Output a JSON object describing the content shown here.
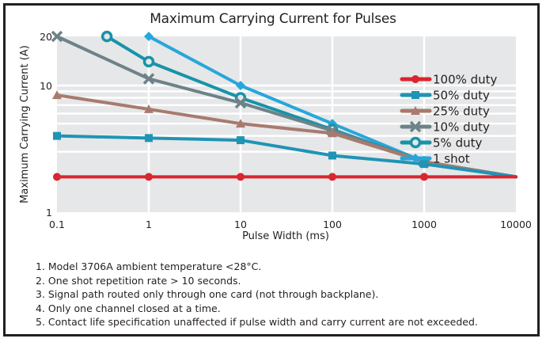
{
  "chart_data": {
    "type": "line",
    "title": "Maximum Carrying Current for Pulses",
    "xlabel": "Pulse Width (ms)",
    "ylabel": "Maximum Carrying Current (A)",
    "xscale": "log",
    "yscale": "log",
    "xlim": [
      0.1,
      10000
    ],
    "ylim": [
      1,
      20
    ],
    "xticks": [
      "0.1",
      "1",
      "10",
      "100",
      "1000",
      "10000"
    ],
    "xtick_values": [
      0.1,
      1,
      10,
      100,
      1000,
      10000
    ],
    "yticks": [
      "1",
      "10",
      "20"
    ],
    "ytick_values": [
      1,
      10,
      20
    ],
    "minor_y_gridlines": [
      3,
      4,
      5,
      6,
      7,
      8,
      9,
      10
    ],
    "grid": true,
    "legend_position": "top-right",
    "series": [
      {
        "name": "100% duty",
        "color": "#d9262f",
        "marker": "circle",
        "x": [
          0.1,
          1,
          10,
          100,
          1000,
          10000
        ],
        "y": [
          1.9,
          1.9,
          1.9,
          1.9,
          1.9,
          1.9
        ]
      },
      {
        "name": "50% duty",
        "color": "#1f94b5",
        "marker": "square",
        "x": [
          0.1,
          1,
          10,
          100,
          1000,
          10000
        ],
        "y": [
          4.0,
          3.85,
          3.7,
          2.8,
          2.4,
          1.9
        ]
      },
      {
        "name": "25% duty",
        "color": "#a87a6e",
        "marker": "triangle",
        "x": [
          0.1,
          1,
          10,
          100,
          1000,
          10000
        ],
        "y": [
          8.4,
          6.5,
          5.0,
          4.2,
          2.5,
          1.9
        ]
      },
      {
        "name": "10% duty",
        "color": "#6d8289",
        "marker": "x",
        "x": [
          0.1,
          1,
          10,
          100,
          1000,
          10000
        ],
        "y": [
          20,
          11,
          7.3,
          4.4,
          2.5,
          1.9
        ]
      },
      {
        "name": "5% duty",
        "color": "#1793a8",
        "marker": "ring",
        "x": [
          0.35,
          1,
          10,
          100,
          1000,
          10000
        ],
        "y": [
          20,
          14,
          8.0,
          4.5,
          2.5,
          1.9
        ]
      },
      {
        "name": "1 shot",
        "color": "#26a7db",
        "marker": "diamond",
        "x": [
          1,
          10,
          100,
          1000,
          10000
        ],
        "y": [
          20,
          10,
          5.0,
          2.5,
          1.9
        ]
      }
    ]
  },
  "notes": [
    "1. Model 3706A ambient temperature <28°C.",
    "2. One shot repetition rate > 10 seconds.",
    "3. Signal path routed only through one card (not through backplane).",
    "4. Only one channel closed at a time.",
    "5. Contact life specification unaffected if pulse width and carry current are not exceeded."
  ]
}
